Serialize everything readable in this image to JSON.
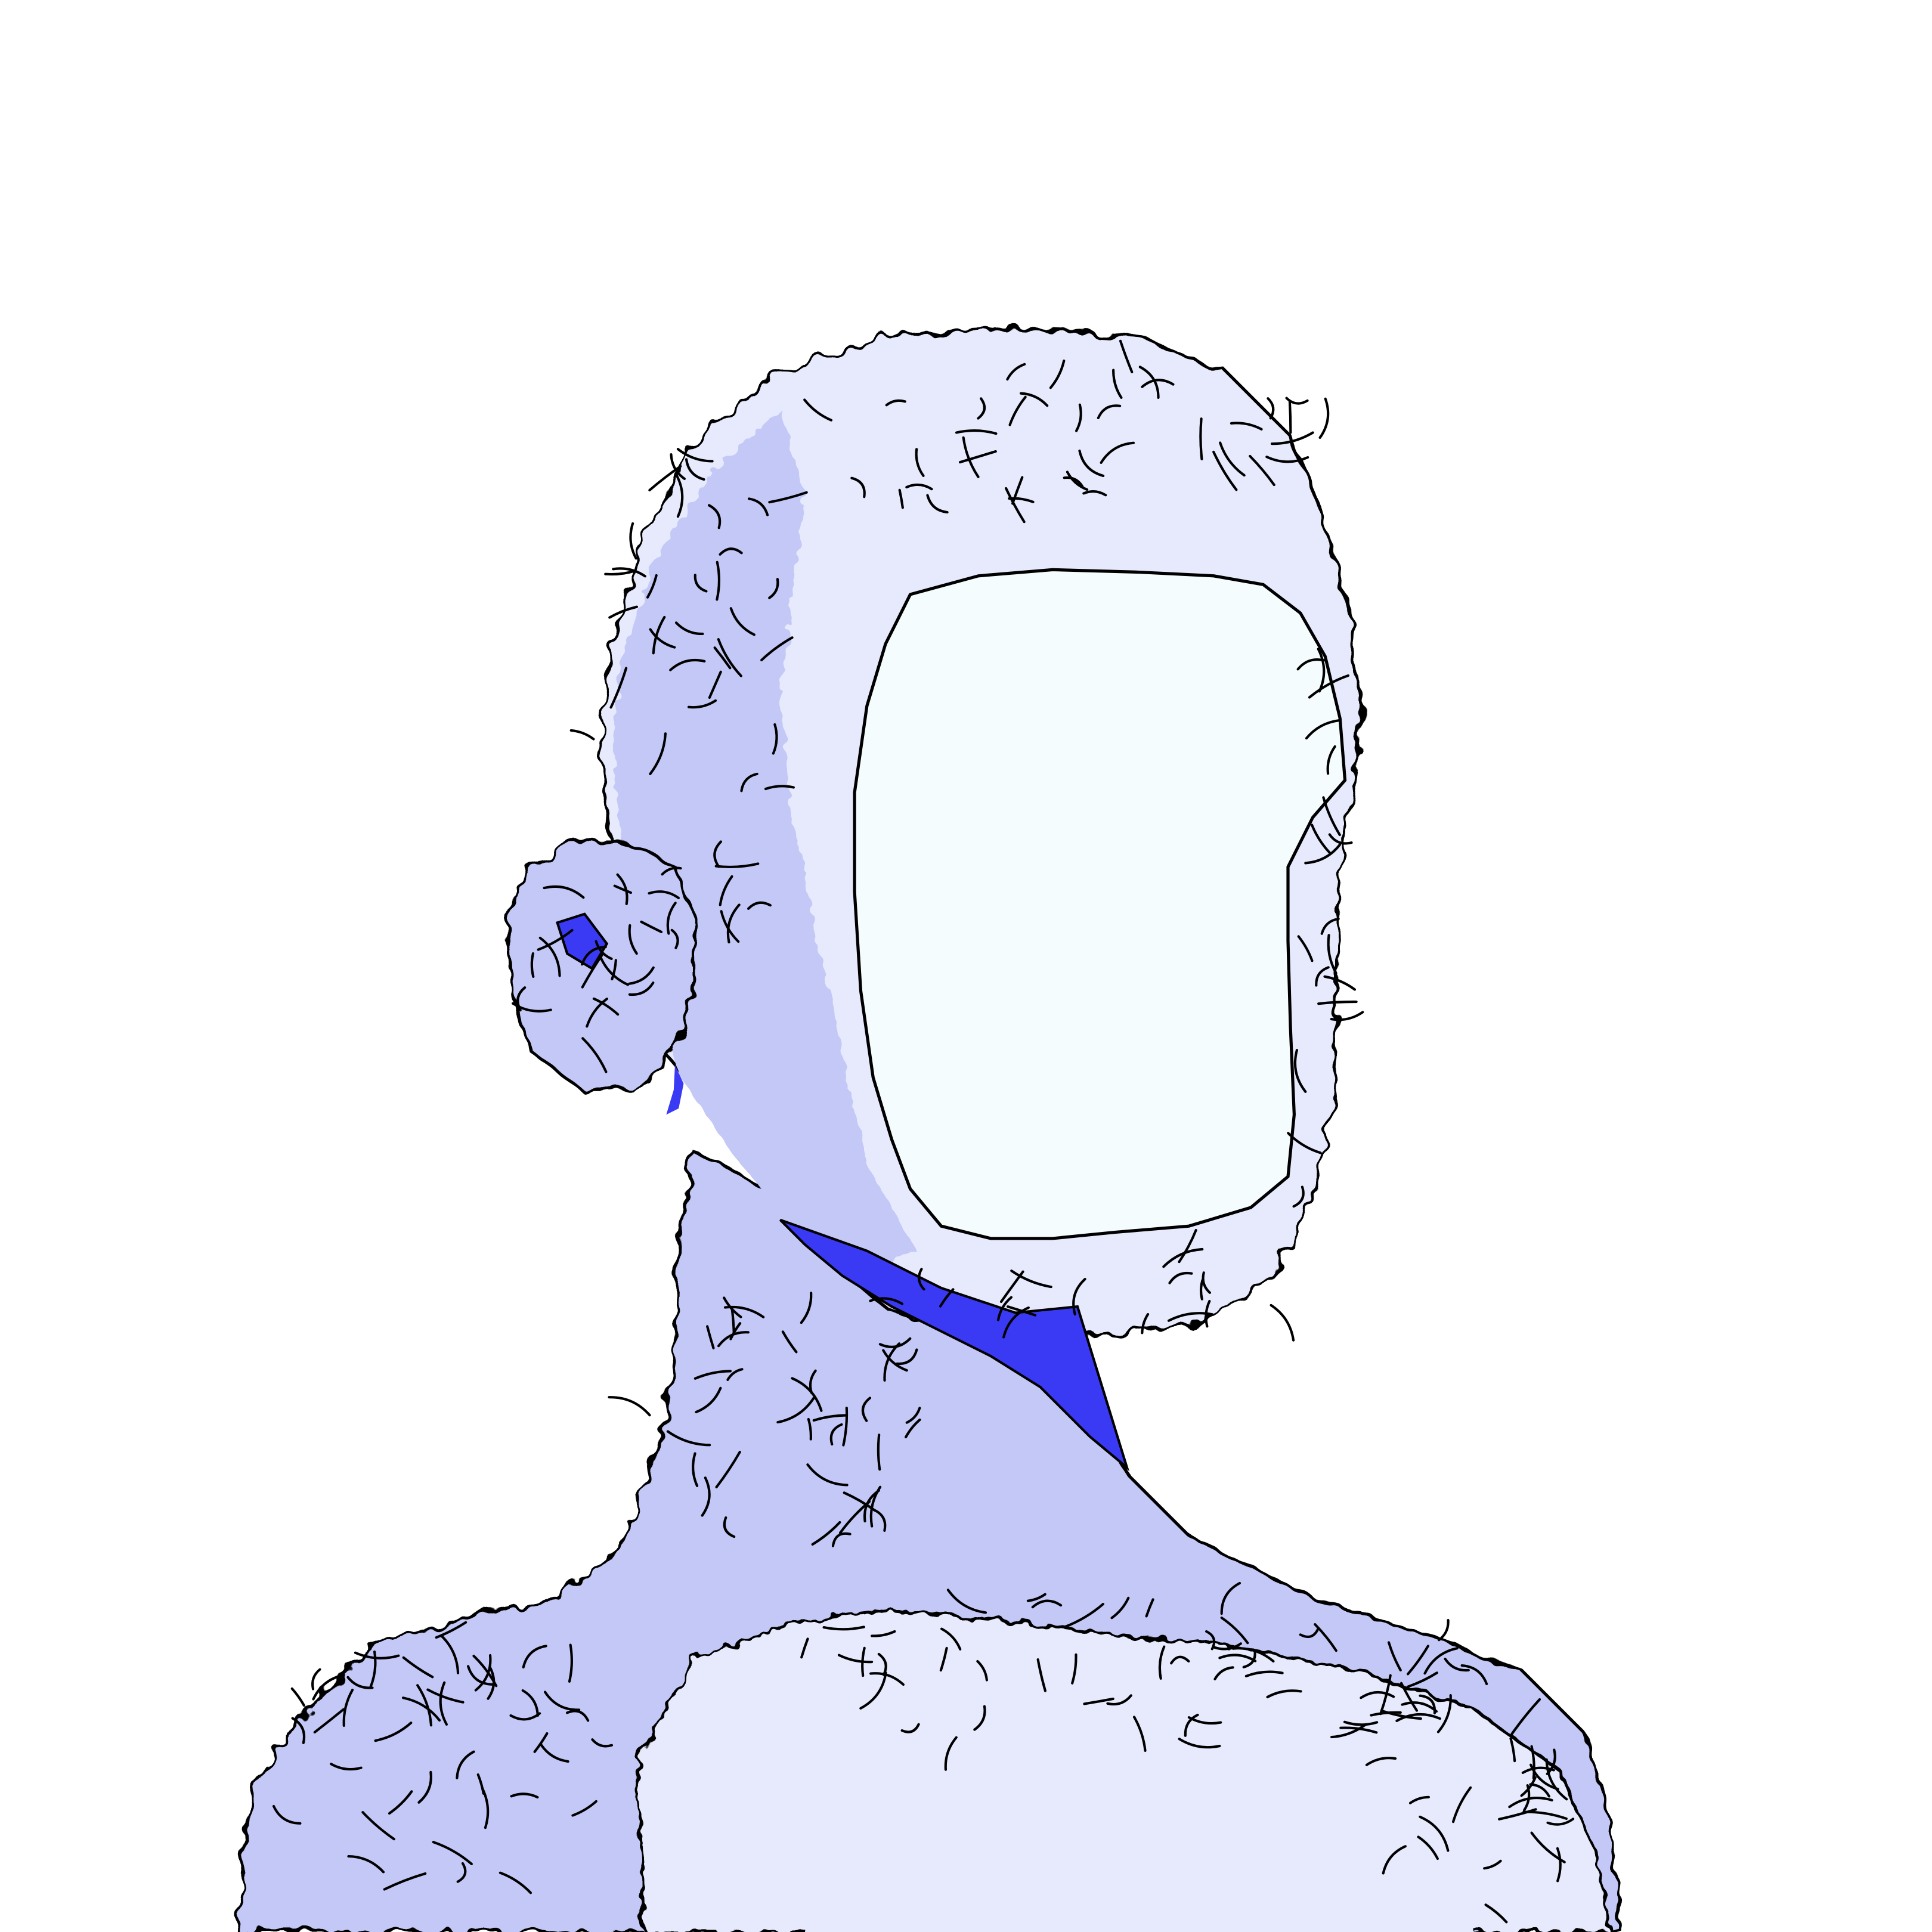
{
  "palette": {
    "background": "#ffffff",
    "fur_light": "#e6eafc",
    "fur_mid": "#c3c8f6",
    "fur_shadow": "#aab2f2",
    "face": "#f5fcfd",
    "accent_blue": "#3a3af5",
    "outline": "#000000"
  }
}
